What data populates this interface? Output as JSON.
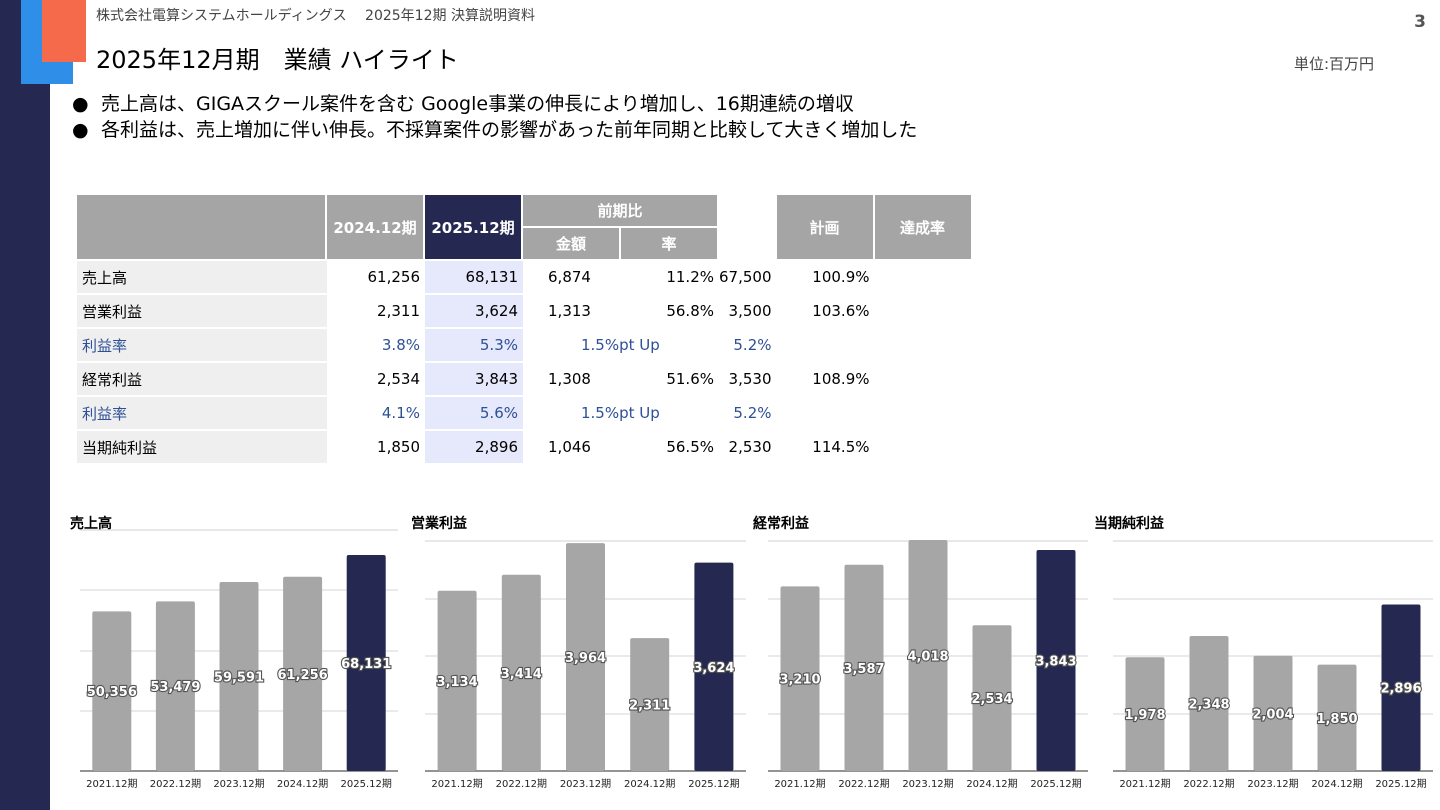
{
  "header": {
    "company": "株式会社電算システムホールディングス　 2025年12期 決算説明資料",
    "page_number": "3",
    "title": "2025年12月期　業績 ハイライト",
    "unit": "単位:百万円"
  },
  "bullets": [
    "売上高は、GIGAスクール案件を含む Google事業の伸長により増加し、16期連続の増収",
    "各利益は、売上増加に伴い伸長。不採算案件の影響があった前年同期と比較して大きく増加した"
  ],
  "bullet_marker": "●",
  "table": {
    "headers": {
      "prev": "2024.12期",
      "current": "2025.12期",
      "yoy": "前期比",
      "yoy_amount": "金額",
      "yoy_rate": "率",
      "plan": "計画",
      "achievement": "達成率"
    },
    "rows": [
      {
        "label": "売上高",
        "prev": "61,256",
        "current": "68,131",
        "diff": "6,874",
        "rate": "11.2%",
        "plan": "67,500",
        "achieve": "100.9%",
        "kind": "normal"
      },
      {
        "label": "営業利益",
        "prev": "2,311",
        "current": "3,624",
        "diff": "1,313",
        "rate": "56.8%",
        "plan": "3,500",
        "achieve": "103.6%",
        "kind": "normal"
      },
      {
        "label": "利益率",
        "prev": "3.8%",
        "current": "5.3%",
        "diff": "1.5%pt Up",
        "plan": "5.2%",
        "kind": "ratio"
      },
      {
        "label": "経常利益",
        "prev": "2,534",
        "current": "3,843",
        "diff": "1,308",
        "rate": "51.6%",
        "plan": "3,530",
        "achieve": "108.9%",
        "kind": "normal"
      },
      {
        "label": "利益率",
        "prev": "4.1%",
        "current": "5.6%",
        "diff": "1.5%pt Up",
        "plan": "5.2%",
        "kind": "ratio"
      },
      {
        "label": "当期純利益",
        "prev": "1,850",
        "current": "2,896",
        "diff": "1,046",
        "rate": "56.5%",
        "plan": "2,530",
        "achieve": "114.5%",
        "kind": "normal"
      }
    ]
  },
  "colors": {
    "grey_bar": "#a6a6a6",
    "current_bar": "#252850",
    "accent_blue": "#2d5096"
  },
  "chart_data": [
    {
      "type": "bar",
      "title": "売上高",
      "categories": [
        "2021.12期",
        "2022.12期",
        "2023.12期",
        "2024.12期",
        "2025.12期"
      ],
      "values": [
        50356,
        53479,
        59591,
        61256,
        68131
      ],
      "labels": [
        "50,356",
        "53,479",
        "59,591",
        "61,256",
        "68,131"
      ],
      "ylim": [
        0,
        76000
      ],
      "highlight_last": true,
      "grid": true
    },
    {
      "type": "bar",
      "title": "営業利益",
      "categories": [
        "2021.12期",
        "2022.12期",
        "2023.12期",
        "2024.12期",
        "2025.12期"
      ],
      "values": [
        3134,
        3414,
        3964,
        2311,
        3624
      ],
      "labels": [
        "3,134",
        "3,414",
        "3,964",
        "2,311",
        "3,624"
      ],
      "ylim": [
        0,
        4000
      ],
      "highlight_last": true,
      "grid": true
    },
    {
      "type": "bar",
      "title": "経常利益",
      "categories": [
        "2021.12期",
        "2022.12期",
        "2023.12期",
        "2024.12期",
        "2025.12期"
      ],
      "values": [
        3210,
        3587,
        4018,
        2534,
        3843
      ],
      "labels": [
        "3,210",
        "3,587",
        "4,018",
        "2,534",
        "3,843"
      ],
      "ylim": [
        0,
        4000
      ],
      "highlight_last": true,
      "grid": true
    },
    {
      "type": "bar",
      "title": "当期純利益",
      "categories": [
        "2021.12期",
        "2022.12期",
        "2023.12期",
        "2024.12期",
        "2025.12期"
      ],
      "values": [
        1978,
        2348,
        2004,
        1850,
        2896
      ],
      "labels": [
        "1,978",
        "2,348",
        "2,004",
        "1,850",
        "2,896"
      ],
      "ylim": [
        0,
        4000
      ],
      "highlight_last": true,
      "grid": true
    }
  ]
}
